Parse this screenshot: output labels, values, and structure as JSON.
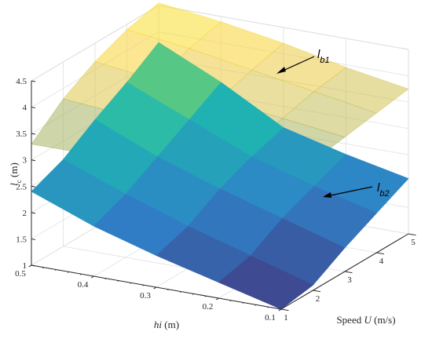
{
  "chart_data": {
    "type": "surface3d",
    "axes": {
      "x": {
        "label_text": "Speed ",
        "label_var": "U",
        "label_unit": " (m/s)",
        "ticks": [
          1,
          2,
          3,
          4,
          5
        ],
        "lim": [
          1,
          5
        ]
      },
      "y": {
        "label_var": "hi",
        "label_unit": " (m)",
        "ticks": [
          "0.1",
          "0.2",
          "0.3",
          "0.4",
          "0.5"
        ],
        "lim": [
          0.1,
          0.5
        ]
      },
      "z": {
        "label_var": "l",
        "label_sub": "c",
        "label_unit": " (m)",
        "ticks": [
          "1",
          "1.5",
          "2",
          "2.5",
          "3",
          "3.5",
          "4",
          "4.5"
        ],
        "lim": [
          1,
          4.5
        ]
      }
    },
    "grid": true,
    "x": [
      1,
      2,
      3,
      4,
      5
    ],
    "y": [
      0.1,
      0.2,
      0.3,
      0.4,
      0.5
    ],
    "series": [
      {
        "label_main": "l",
        "label_sub": "b1",
        "colormap": [
          "#7aa56a",
          "#c9bf5a",
          "#f6cf3a",
          "#fde725"
        ],
        "opacity": 0.55,
        "z": [
          [
            3.45,
            3.45,
            3.55,
            3.65,
            3.75
          ],
          [
            3.4,
            3.5,
            3.7,
            3.85,
            3.95
          ],
          [
            3.35,
            3.6,
            3.85,
            4.05,
            4.2
          ],
          [
            3.3,
            3.7,
            4.0,
            4.25,
            4.4
          ],
          [
            3.3,
            3.8,
            4.15,
            4.4,
            4.55
          ]
        ]
      },
      {
        "label_main": "l",
        "label_sub": "b2",
        "colormap": [
          "#433c83",
          "#2f80c8",
          "#1fb7b0",
          "#8ed65a"
        ],
        "opacity": 1.0,
        "z": [
          [
            1.0,
            1.1,
            1.45,
            1.75,
            2.05
          ],
          [
            1.3,
            1.45,
            1.8,
            2.05,
            2.3
          ],
          [
            1.6,
            1.8,
            2.15,
            2.4,
            2.6
          ],
          [
            1.95,
            2.2,
            2.55,
            2.9,
            3.25
          ],
          [
            2.4,
            2.65,
            3.05,
            3.4,
            3.8
          ]
        ]
      }
    ]
  }
}
